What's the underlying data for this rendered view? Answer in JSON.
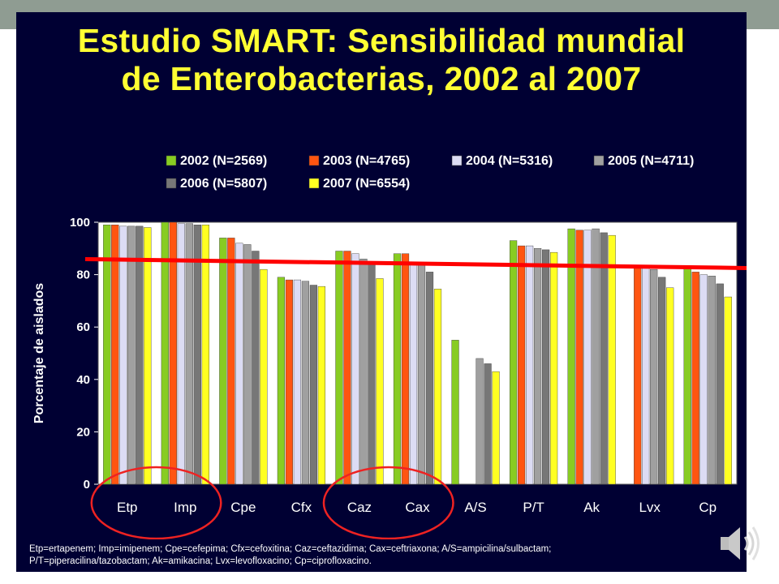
{
  "slide": {
    "title_line1": "Estudio SMART: Sensibilidad mundial",
    "title_line2": "de Enterobacterias, 2002 al 2007",
    "footnote_line1": "Etp=ertapenem; Imp=imipenem;  Cpe=cefepima; Cfx=cefoxitina; Caz=ceftazidima; Cax=ceftriaxona; A/S=ampicilina/sulbactam;",
    "footnote_line2": "P/T=piperacilina/tazobactam; Ak=amikacina; Lvx=levofloxacino; Cp=ciprofloxacino.",
    "speaker_icon": "speaker-icon"
  },
  "chart_data": {
    "type": "bar",
    "title": "",
    "xlabel": "",
    "ylabel": "Porcentaje de aislados",
    "ylim": [
      0,
      100
    ],
    "yticks": [
      0,
      20,
      40,
      60,
      80,
      100
    ],
    "grid": false,
    "legend_position": "top-right",
    "categories": [
      "Etp",
      "Imp",
      "Cpe",
      "Cfx",
      "Caz",
      "Cax",
      "A/S",
      "P/T",
      "Ak",
      "Lvx",
      "Cp"
    ],
    "series": [
      {
        "name": "2002 (N=2569)",
        "color": "#88cc22",
        "values": [
          99,
          100,
          94,
          79,
          89,
          88,
          55,
          93,
          97.5,
          null,
          83
        ]
      },
      {
        "name": "2003 (N=4765)",
        "color": "#ff5511",
        "values": [
          99,
          100,
          94,
          78,
          89,
          88,
          null,
          91,
          97,
          83,
          81
        ]
      },
      {
        "name": "2004 (N=5316)",
        "color": "#dcdcf4",
        "values": [
          98.5,
          99.5,
          92,
          78,
          88,
          84,
          null,
          91,
          97,
          83,
          80
        ]
      },
      {
        "name": "2005 (N=4711)",
        "color": "#a0a0a0",
        "values": [
          98.5,
          99.5,
          91.5,
          77.5,
          86,
          84,
          48,
          90,
          97.5,
          82,
          79.5
        ]
      },
      {
        "name": "2006 (N=5807)",
        "color": "#777777",
        "values": [
          98.5,
          99,
          89,
          76,
          85,
          81,
          46,
          89.5,
          96,
          79,
          76.5
        ]
      },
      {
        "name": "2007 (N=6554)",
        "color": "#ffff22",
        "values": [
          98,
          99,
          82,
          75.5,
          78.5,
          74.5,
          43,
          88.5,
          95,
          75,
          71.5
        ]
      }
    ],
    "annotations": {
      "reference_line_value": 85,
      "reference_line_color": "#ff0000",
      "circled_groups": [
        [
          "Etp",
          "Imp"
        ],
        [
          "Caz",
          "Cax"
        ]
      ],
      "circle_color": "#ee2222"
    }
  }
}
